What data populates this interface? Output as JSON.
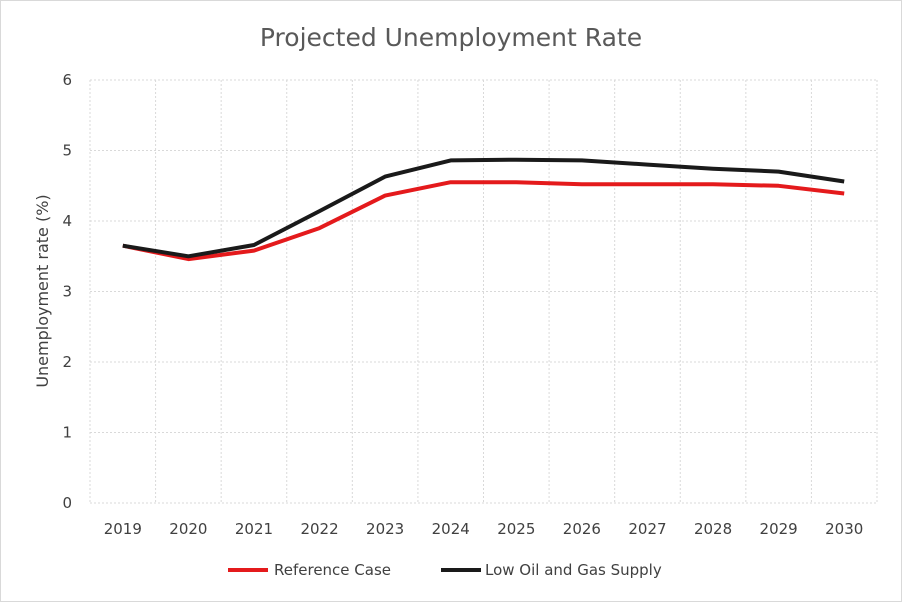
{
  "chart_data": {
    "type": "line",
    "title": "Projected Unemployment Rate",
    "xlabel": "",
    "ylabel": "Unemployment rate (%)",
    "categories": [
      "2019",
      "2020",
      "2021",
      "2022",
      "2023",
      "2024",
      "2025",
      "2026",
      "2027",
      "2028",
      "2029",
      "2030"
    ],
    "ylim": [
      0,
      6
    ],
    "yticks": [
      0,
      1,
      2,
      3,
      4,
      5,
      6
    ],
    "grid": true,
    "legend_position": "bottom",
    "series": [
      {
        "name": "Reference Case",
        "color": "#e41a1c",
        "values": [
          3.65,
          3.46,
          3.58,
          3.9,
          4.36,
          4.55,
          4.55,
          4.52,
          4.52,
          4.52,
          4.5,
          4.39
        ]
      },
      {
        "name": "Low Oil and Gas Supply",
        "color": "#1a1a1a",
        "values": [
          3.65,
          3.5,
          3.66,
          4.14,
          4.63,
          4.86,
          4.87,
          4.86,
          4.8,
          4.74,
          4.7,
          4.56
        ]
      }
    ]
  }
}
